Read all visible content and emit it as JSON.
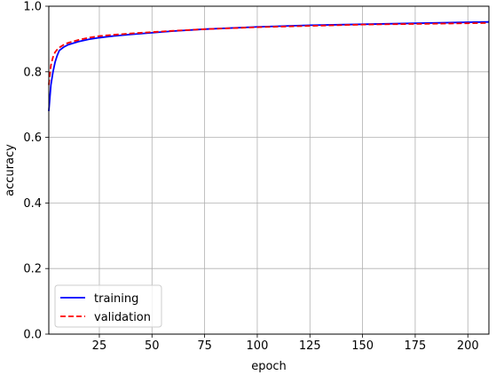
{
  "chart_data": {
    "type": "line",
    "title": "",
    "xlabel": "epoch",
    "ylabel": "accuracy",
    "xlim": [
      1,
      210
    ],
    "ylim": [
      0.0,
      1.0
    ],
    "xticks": [
      25,
      50,
      75,
      100,
      125,
      150,
      175,
      200
    ],
    "yticks": [
      0.0,
      0.2,
      0.4,
      0.6,
      0.8,
      1.0
    ],
    "xtick_labels": [
      "25",
      "50",
      "75",
      "100",
      "125",
      "150",
      "175",
      "200"
    ],
    "ytick_labels": [
      "0.0",
      "0.2",
      "0.4",
      "0.6",
      "0.8",
      "1.0"
    ],
    "grid": true,
    "legend_position": "bottom-left",
    "series": [
      {
        "name": "training",
        "color": "#0000ff",
        "linestyle": "solid",
        "x": [
          1,
          2,
          3,
          4,
          5,
          6,
          8,
          10,
          15,
          20,
          25,
          30,
          40,
          50,
          60,
          75,
          100,
          125,
          150,
          175,
          200,
          210
        ],
        "y": [
          0.68,
          0.76,
          0.8,
          0.83,
          0.85,
          0.865,
          0.875,
          0.882,
          0.892,
          0.899,
          0.904,
          0.908,
          0.914,
          0.919,
          0.924,
          0.93,
          0.937,
          0.942,
          0.945,
          0.948,
          0.951,
          0.952
        ]
      },
      {
        "name": "validation",
        "color": "#ff0000",
        "linestyle": "dashed",
        "x": [
          1,
          2,
          3,
          4,
          5,
          6,
          8,
          10,
          15,
          20,
          25,
          30,
          40,
          50,
          60,
          75,
          100,
          125,
          150,
          175,
          200,
          210
        ],
        "y": [
          0.76,
          0.82,
          0.845,
          0.86,
          0.868,
          0.874,
          0.882,
          0.888,
          0.897,
          0.904,
          0.909,
          0.912,
          0.917,
          0.921,
          0.925,
          0.93,
          0.936,
          0.94,
          0.944,
          0.946,
          0.948,
          0.949
        ]
      }
    ]
  }
}
